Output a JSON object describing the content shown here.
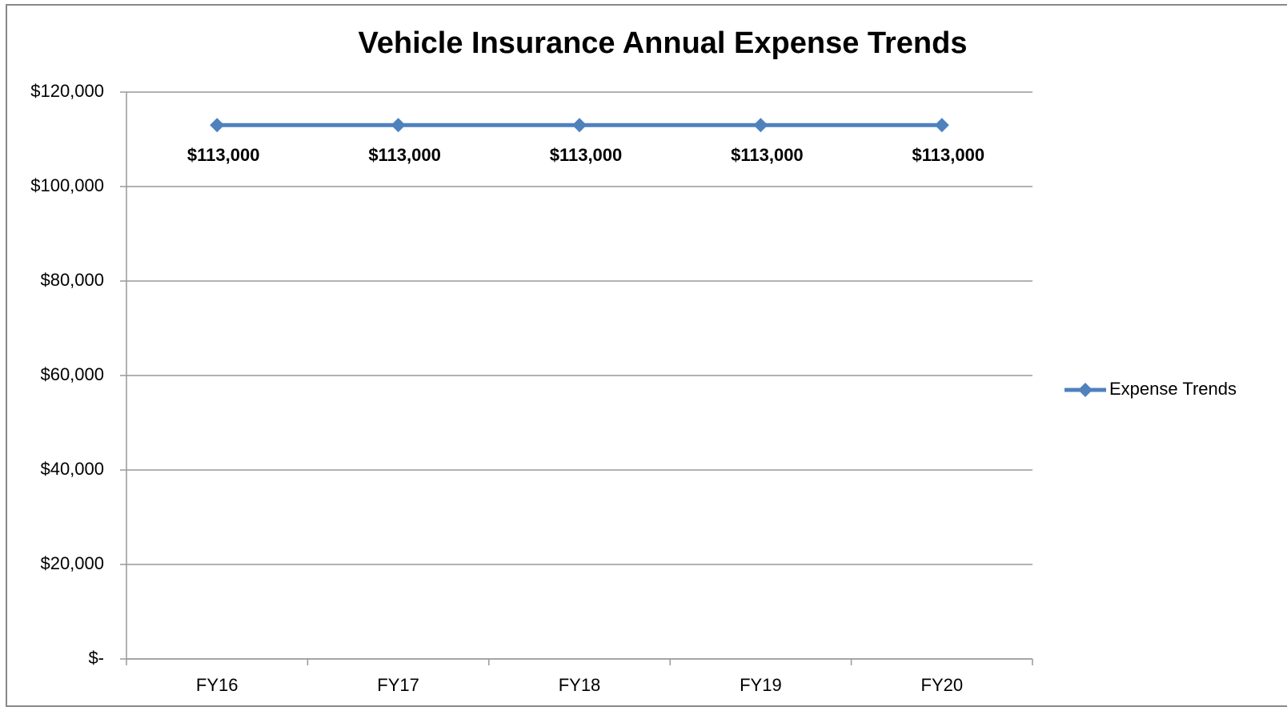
{
  "chart_data": {
    "type": "line",
    "title": "Vehicle Insurance Annual Expense Trends",
    "categories": [
      "FY16",
      "FY17",
      "FY18",
      "FY19",
      "FY20"
    ],
    "series": [
      {
        "name": "Expense Trends",
        "color": "#4f81bd",
        "values": [
          113000,
          113000,
          113000,
          113000,
          113000
        ],
        "value_labels": [
          "$113,000",
          "$113,000",
          "$113,000",
          "$113,000",
          "$113,000"
        ]
      }
    ],
    "ylim": [
      0,
      120000
    ],
    "yticks": [
      {
        "value": 0,
        "label": "$-"
      },
      {
        "value": 20000,
        "label": "$20,000"
      },
      {
        "value": 40000,
        "label": "$40,000"
      },
      {
        "value": 60000,
        "label": "$60,000"
      },
      {
        "value": 80000,
        "label": "$80,000"
      },
      {
        "value": 100000,
        "label": "$100,000"
      },
      {
        "value": 120000,
        "label": "$120,000"
      }
    ],
    "grid": true,
    "legend": "right"
  }
}
